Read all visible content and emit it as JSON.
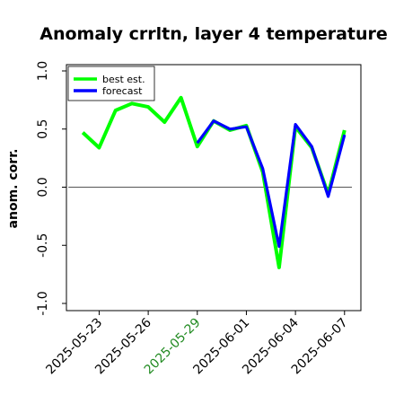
{
  "chart_data": {
    "type": "line",
    "title": "Anomaly crrltn, layer 4 temperature",
    "xlabel": "",
    "ylabel": "anom. corr.",
    "ylim": [
      -1.0,
      1.0
    ],
    "yticks": [
      "1.0",
      "0.5",
      "0.0",
      "-0.5",
      "-1.0"
    ],
    "ytick_values": [
      1.0,
      0.5,
      0.0,
      -0.5,
      -1.0
    ],
    "x": [
      "2025-05-22",
      "2025-05-23",
      "2025-05-24",
      "2025-05-25",
      "2025-05-26",
      "2025-05-27",
      "2025-05-28",
      "2025-05-29",
      "2025-05-30",
      "2025-05-31",
      "2025-06-01",
      "2025-06-02",
      "2025-06-03",
      "2025-06-04",
      "2025-06-05",
      "2025-06-06",
      "2025-06-07"
    ],
    "xlim": [
      "2025-05-21",
      "2025-06-08"
    ],
    "xticks": [
      "2025-05-23",
      "2025-05-26",
      "2025-05-29",
      "2025-06-01",
      "2025-06-04",
      "2025-06-07"
    ],
    "xtick_colors": [
      "#000000",
      "#000000",
      "#228B22",
      "#000000",
      "#000000",
      "#000000"
    ],
    "hline": 0.0,
    "series": [
      {
        "name": "best est.",
        "color": "#00ff00",
        "values": [
          0.47,
          0.34,
          0.66,
          0.72,
          0.69,
          0.56,
          0.77,
          0.35,
          0.57,
          0.49,
          0.53,
          0.13,
          -0.69,
          0.52,
          0.34,
          -0.06,
          0.49
        ]
      },
      {
        "name": "forecast",
        "color": "#0000ff",
        "values": [
          null,
          null,
          null,
          null,
          null,
          null,
          null,
          0.38,
          0.57,
          0.5,
          0.52,
          0.16,
          -0.51,
          0.54,
          0.35,
          -0.08,
          0.45
        ]
      }
    ],
    "legend": "top-left",
    "grid": false
  }
}
